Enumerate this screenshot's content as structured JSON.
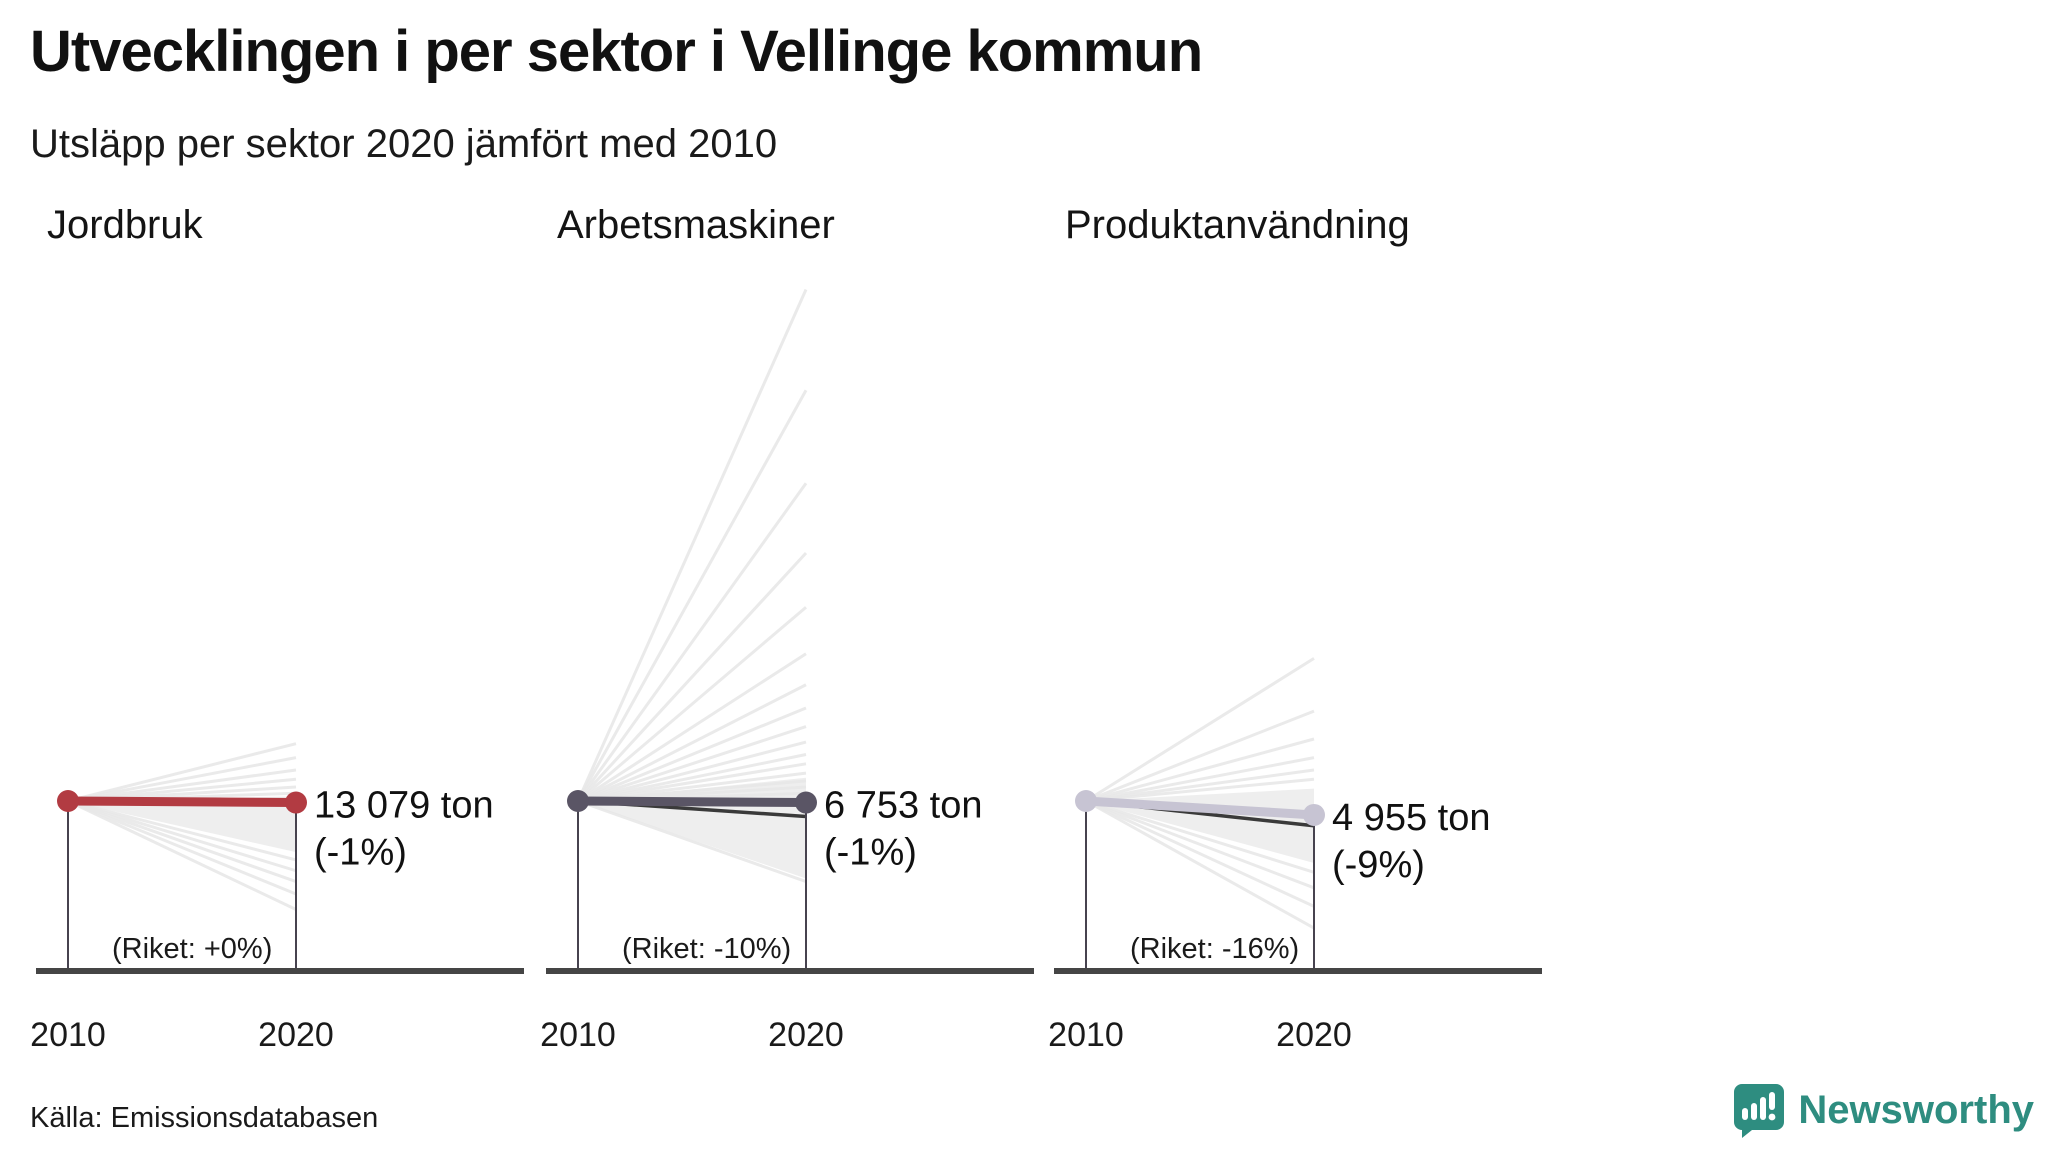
{
  "header": {
    "title": "Utvecklingen i per sektor i Vellinge kommun",
    "subtitle": "Utsläpp per sektor 2020 jämfört med 2010"
  },
  "footer": {
    "source": "Källa: Emissionsdatabasen",
    "brand": "Newsworthy"
  },
  "colors": {
    "chart1_line": "#b23b42",
    "chart2_line": "#5a5565",
    "chart3_line": "#c7c4d3",
    "national_line": "#3a3a3a",
    "axis": "#454545",
    "background_lines": "#e8e8e8",
    "brand_teal": "#2e8d80"
  },
  "chart_data": [
    {
      "type": "line",
      "sector": "Jordbruk",
      "x": [
        "2010",
        "2020"
      ],
      "value_2020_ton": 13079,
      "value_label": "13 079 ton",
      "pct_change": -1,
      "pct_label": "(-1%)",
      "riket_pct": 0,
      "riket_label": "(Riket: +0%)",
      "color": "#b23b42",
      "background_wedge_pct": [
        3,
        -33
      ],
      "background_lines_pct": [
        37,
        28,
        20,
        14,
        9,
        5,
        -38,
        -45,
        -52,
        -60,
        -70
      ]
    },
    {
      "type": "line",
      "sector": "Arbetsmaskiner",
      "x": [
        "2010",
        "2020"
      ],
      "value_2020_ton": 6753,
      "value_label": "6 753 ton",
      "pct_change": -1,
      "pct_label": "(-1%)",
      "riket_pct": -10,
      "riket_label": "(Riket: -10%)",
      "color": "#5a5565",
      "background_wedge_pct": [
        15,
        -50
      ],
      "background_lines_pct": [
        330,
        265,
        205,
        160,
        125,
        95,
        75,
        60,
        48,
        38,
        30,
        24,
        18,
        13,
        9,
        5,
        -52
      ]
    },
    {
      "type": "line",
      "sector": "Produktanvändning",
      "x": [
        "2010",
        "2020"
      ],
      "value_2020_ton": 4955,
      "value_label": "4 955 ton",
      "pct_change": -9,
      "pct_label": "(-9%)",
      "riket_pct": -16,
      "riket_label": "(Riket: -16%)",
      "color": "#c7c4d3",
      "background_wedge_pct": [
        8,
        -40
      ],
      "background_lines_pct": [
        92,
        58,
        40,
        28,
        20,
        14,
        -46,
        -56,
        -68,
        -82
      ]
    }
  ]
}
